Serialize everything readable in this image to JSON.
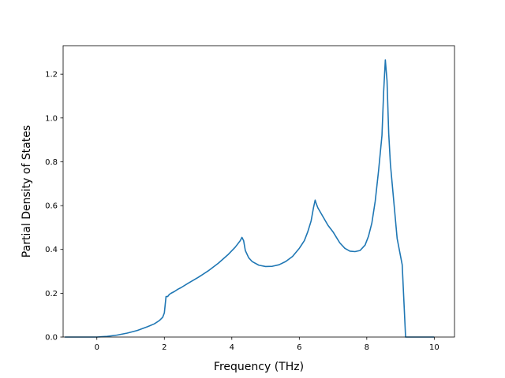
{
  "chart_data": {
    "type": "line",
    "title": "",
    "xlabel": "Frequency (THz)",
    "ylabel": "Partial Density of States",
    "xlim": [
      -1.0,
      10.6
    ],
    "ylim": [
      0.0,
      1.33
    ],
    "xticks": [
      0,
      2,
      4,
      6,
      8,
      10
    ],
    "yticks": [
      0.0,
      0.2,
      0.4,
      0.6,
      0.8,
      1.0,
      1.2
    ],
    "xtick_labels": [
      "0",
      "2",
      "4",
      "6",
      "8",
      "10"
    ],
    "ytick_labels": [
      "0.0",
      "0.2",
      "0.4",
      "0.6",
      "0.8",
      "1.0",
      "1.2"
    ],
    "grid": false,
    "legend": "none",
    "series": [
      {
        "color": "#1f77b4",
        "x": [
          -0.95,
          0.0,
          0.3,
          0.6,
          0.9,
          1.2,
          1.5,
          1.7,
          1.85,
          1.95,
          2.0,
          2.05,
          2.1,
          2.15,
          2.2,
          2.3,
          2.4,
          2.5,
          2.7,
          3.0,
          3.3,
          3.6,
          3.9,
          4.1,
          4.25,
          4.3,
          4.35,
          4.4,
          4.5,
          4.6,
          4.8,
          5.0,
          5.2,
          5.4,
          5.6,
          5.8,
          6.0,
          6.15,
          6.25,
          6.35,
          6.42,
          6.47,
          6.5,
          6.55,
          6.7,
          6.85,
          7.0,
          7.1,
          7.2,
          7.35,
          7.5,
          7.65,
          7.8,
          7.95,
          8.05,
          8.15,
          8.25,
          8.35,
          8.4,
          8.45,
          8.5,
          8.55,
          8.6,
          8.65,
          8.7,
          8.8,
          8.9,
          9.05,
          9.15,
          9.3,
          10.0
        ],
        "y": [
          0.0,
          0.0,
          0.003,
          0.009,
          0.018,
          0.03,
          0.047,
          0.06,
          0.075,
          0.09,
          0.11,
          0.185,
          0.185,
          0.195,
          0.2,
          0.208,
          0.218,
          0.226,
          0.245,
          0.272,
          0.302,
          0.337,
          0.378,
          0.41,
          0.44,
          0.455,
          0.44,
          0.395,
          0.362,
          0.345,
          0.328,
          0.322,
          0.323,
          0.33,
          0.345,
          0.368,
          0.405,
          0.44,
          0.48,
          0.53,
          0.59,
          0.625,
          0.61,
          0.59,
          0.55,
          0.51,
          0.48,
          0.455,
          0.43,
          0.405,
          0.392,
          0.39,
          0.395,
          0.42,
          0.46,
          0.52,
          0.62,
          0.76,
          0.84,
          0.92,
          1.12,
          1.265,
          1.17,
          0.93,
          0.79,
          0.62,
          0.45,
          0.33,
          0.0,
          0.0,
          0.0
        ]
      }
    ]
  }
}
